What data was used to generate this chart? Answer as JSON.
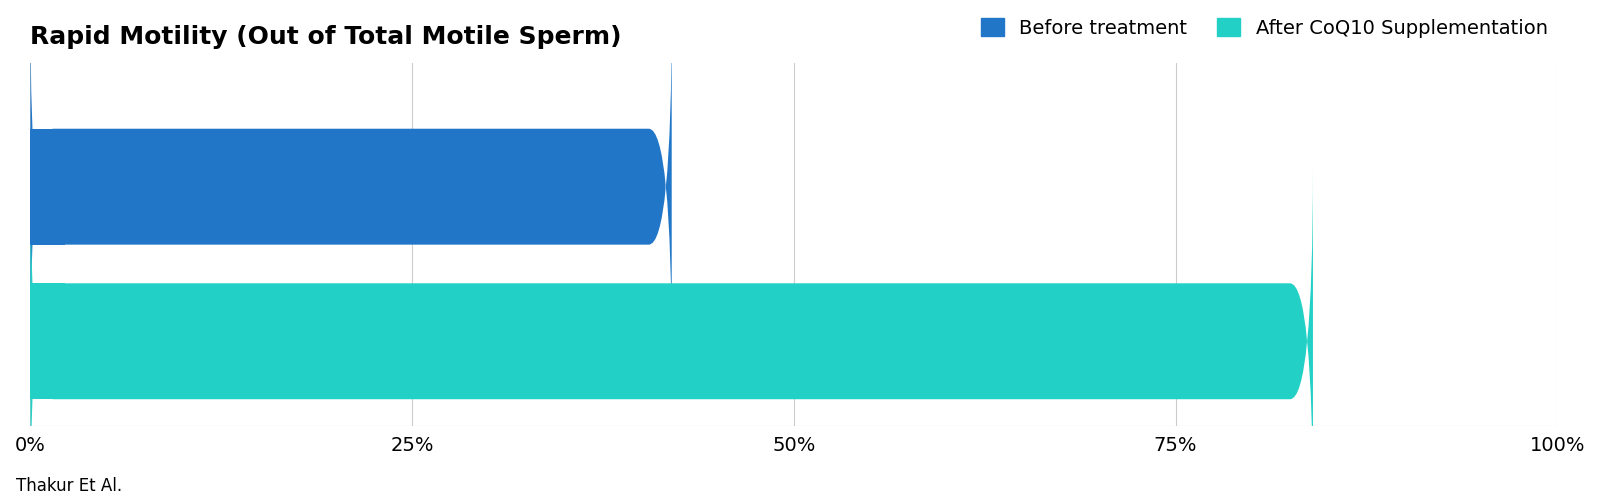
{
  "title": "Rapid Motility (Out of Total Motile Sperm)",
  "categories": [
    "Before treatment",
    "After CoQ10 Supplementation"
  ],
  "values": [
    42,
    84
  ],
  "colors": [
    "#2176c7",
    "#22d0c5"
  ],
  "xlim": [
    0,
    100
  ],
  "xticks": [
    0,
    25,
    50,
    75,
    100
  ],
  "xticklabels": [
    "0%",
    "25%",
    "50%",
    "75%",
    "100%"
  ],
  "legend_labels": [
    "Before treatment",
    "After CoQ10 Supplementation"
  ],
  "legend_colors": [
    "#2176c7",
    "#22d0c5"
  ],
  "citation": "Thakur Et Al.",
  "background_color": "#ffffff",
  "title_fontsize": 18,
  "tick_fontsize": 14,
  "legend_fontsize": 14,
  "citation_fontsize": 12,
  "bar_height": 0.75,
  "rounding_size": 1.5
}
